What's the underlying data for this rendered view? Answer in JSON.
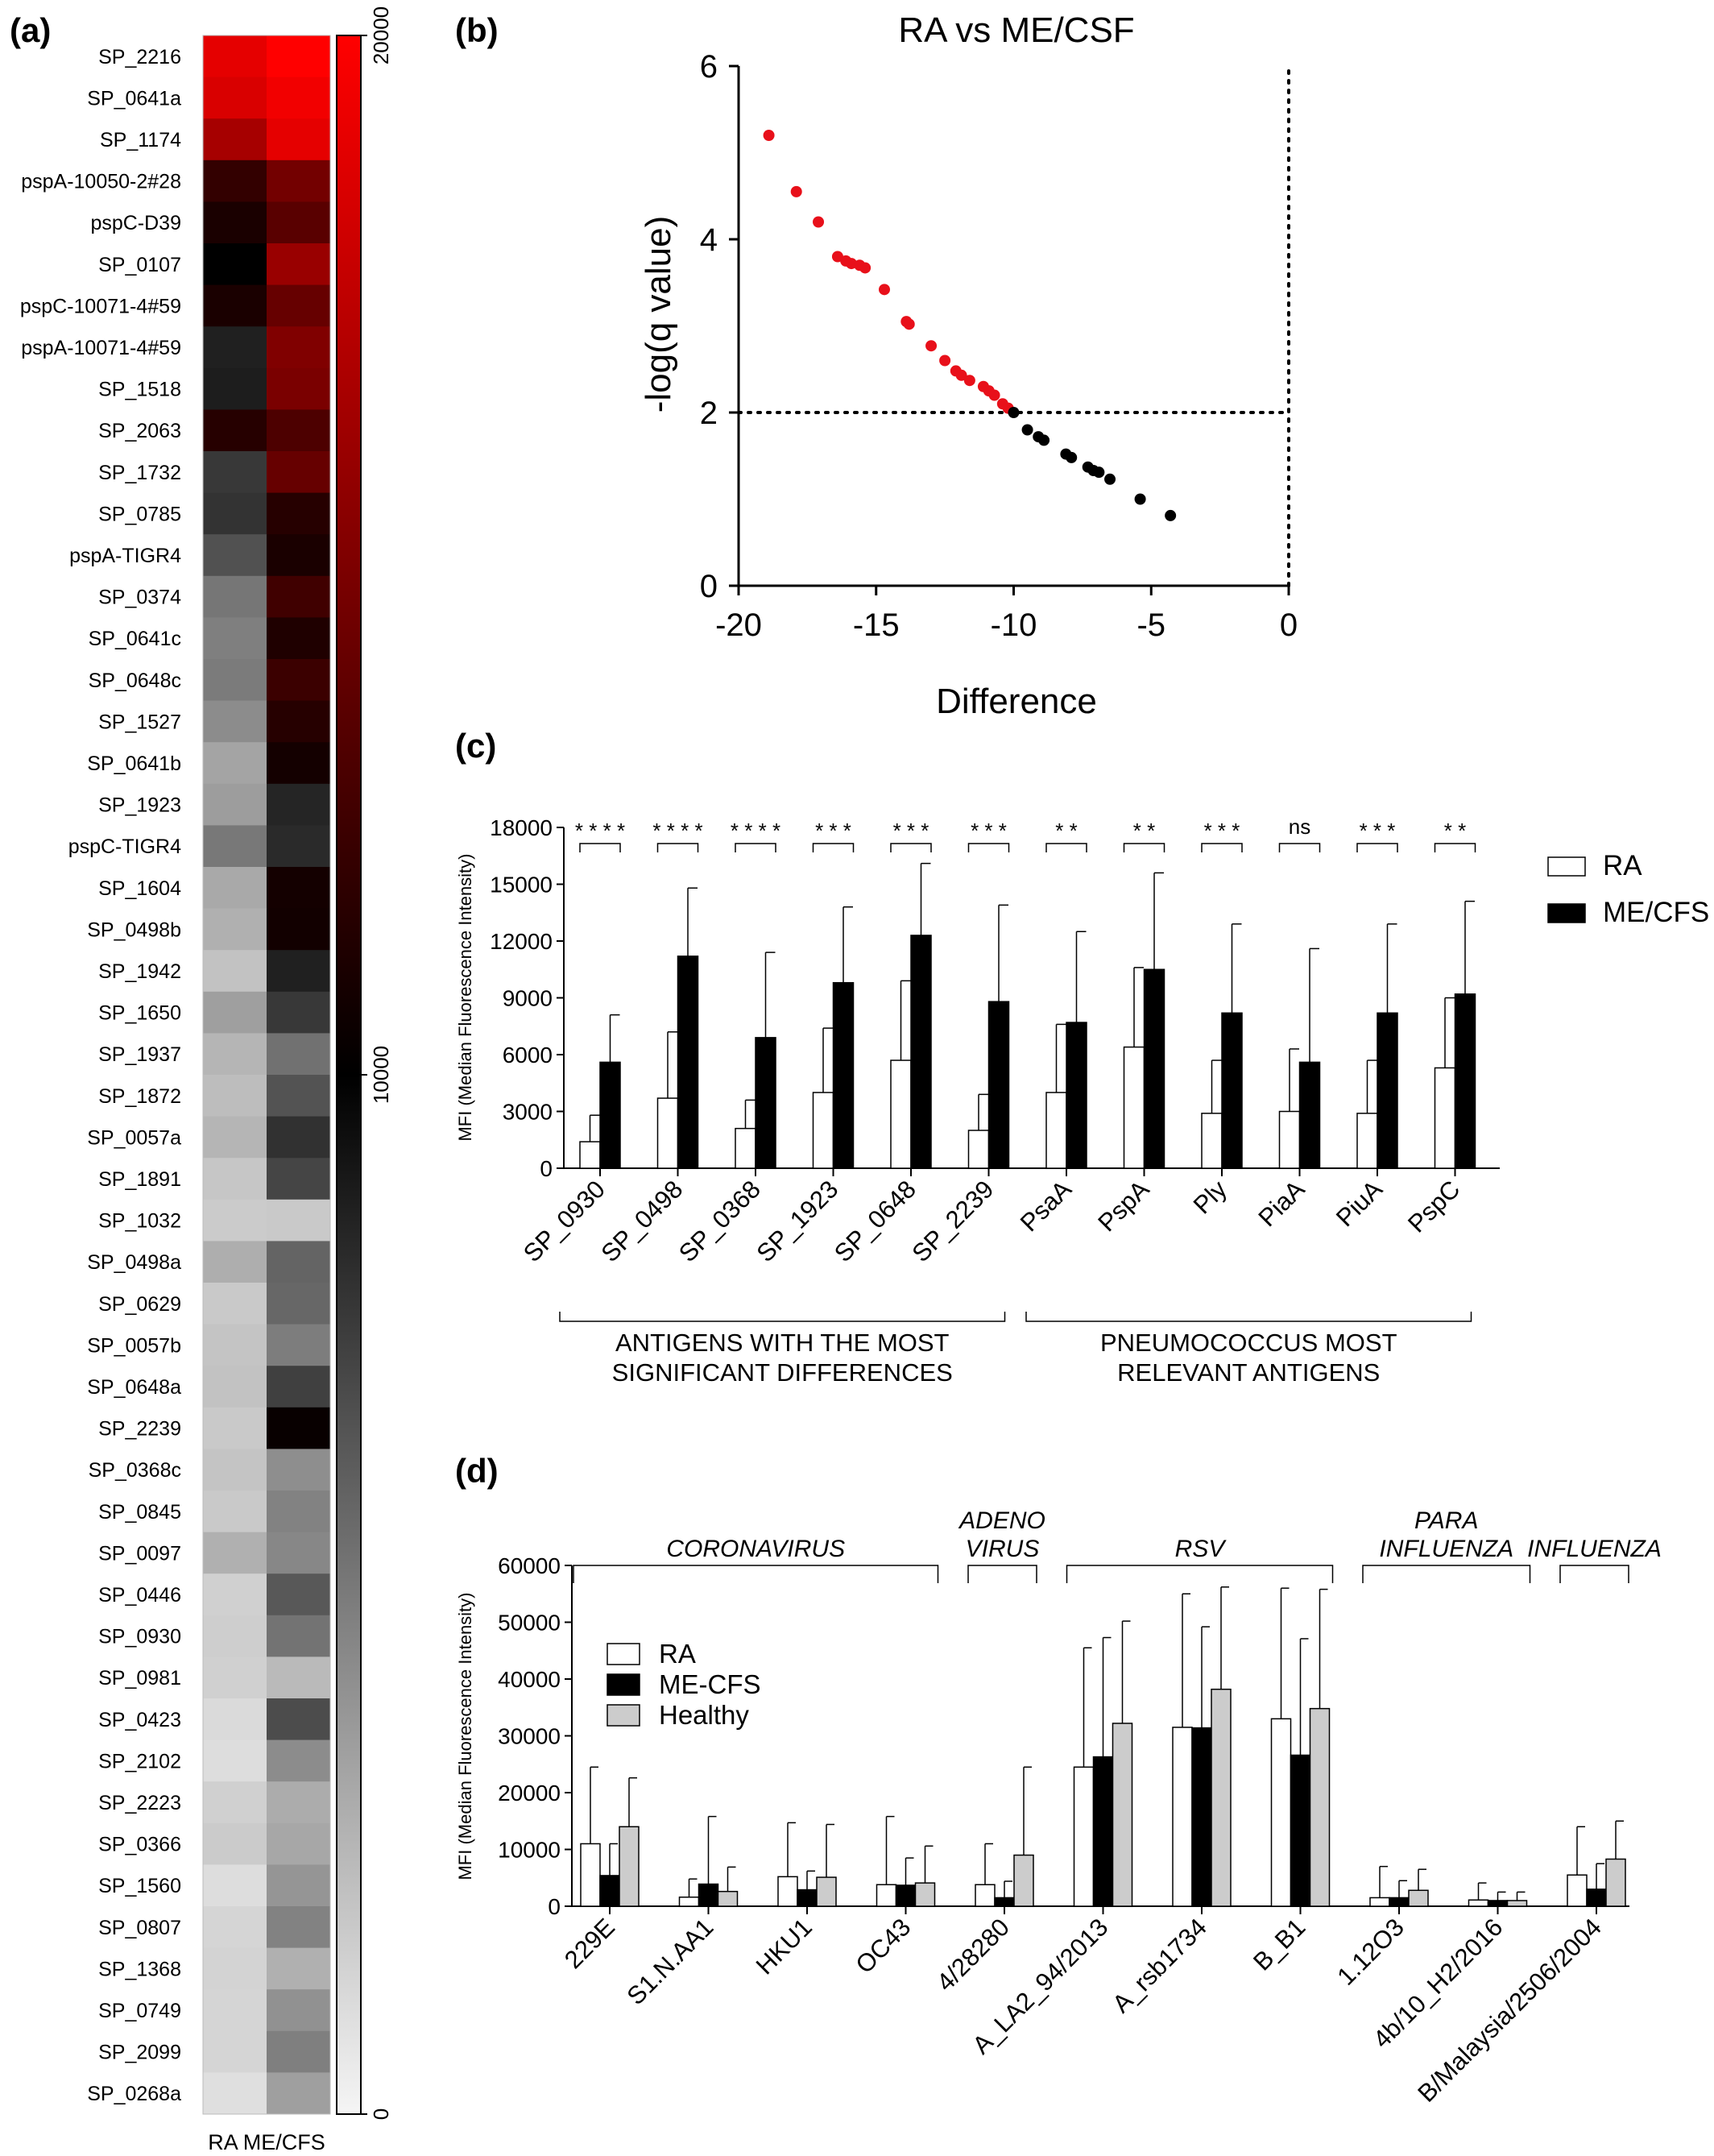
{
  "panel_labels": {
    "a": "(a)",
    "b": "(b)",
    "c": "(c)",
    "d": "(d)"
  },
  "chart_data": [
    {
      "panel": "a",
      "type": "heatmap",
      "rows": [
        "SP_2216",
        "SP_0641a",
        "SP_1174",
        "pspA-10050-2#28",
        "pspC-D39",
        "SP_0107",
        "pspC-10071-4#59",
        "pspA-10071-4#59",
        "SP_1518",
        "SP_2063",
        "SP_1732",
        "SP_0785",
        "pspA-TIGR4",
        "SP_0374",
        "SP_0641c",
        "SP_0648c",
        "SP_1527",
        "SP_0641b",
        "SP_1923",
        "pspC-TIGR4",
        "SP_1604",
        "SP_0498b",
        "SP_1942",
        "SP_1650",
        "SP_1937",
        "SP_1872",
        "SP_0057a",
        "SP_1891",
        "SP_1032",
        "SP_0498a",
        "SP_0629",
        "SP_0057b",
        "SP_0648a",
        "SP_2239",
        "SP_0368c",
        "SP_0845",
        "SP_0097",
        "SP_0446",
        "SP_0930",
        "SP_0981",
        "SP_0423",
        "SP_2102",
        "SP_2223",
        "SP_0366",
        "SP_1560",
        "SP_0807",
        "SP_1368",
        "SP_0749",
        "SP_2099",
        "SP_0268a"
      ],
      "columns": [
        "RA",
        "ME/CFS"
      ],
      "column_label": "RA ME/CFS",
      "values": [
        [
          19000,
          20000
        ],
        [
          18500,
          19500
        ],
        [
          16500,
          19000
        ],
        [
          12000,
          14500
        ],
        [
          11000,
          13500
        ],
        [
          10000,
          16000
        ],
        [
          11000,
          14000
        ],
        [
          8700,
          15000
        ],
        [
          8800,
          14800
        ],
        [
          11500,
          13000
        ],
        [
          7700,
          14000
        ],
        [
          7900,
          11500
        ],
        [
          6700,
          11000
        ],
        [
          5200,
          12500
        ],
        [
          4800,
          11200
        ],
        [
          5000,
          12300
        ],
        [
          4300,
          11500
        ],
        [
          3300,
          10800
        ],
        [
          3600,
          8500
        ],
        [
          5100,
          8300
        ],
        [
          3100,
          10800
        ],
        [
          2800,
          10700
        ],
        [
          2100,
          8700
        ],
        [
          3500,
          7700
        ],
        [
          2600,
          5400
        ],
        [
          2300,
          6600
        ],
        [
          2600,
          8000
        ],
        [
          1900,
          7200
        ],
        [
          1700,
          1800
        ],
        [
          2900,
          5900
        ],
        [
          1800,
          5800
        ],
        [
          2000,
          4900
        ],
        [
          2100,
          7400
        ],
        [
          1800,
          10300
        ],
        [
          2000,
          4200
        ],
        [
          1800,
          4700
        ],
        [
          2800,
          4500
        ],
        [
          1500,
          6400
        ],
        [
          1600,
          5300
        ],
        [
          1500,
          2400
        ],
        [
          1100,
          6900
        ],
        [
          1000,
          4300
        ],
        [
          1500,
          3000
        ],
        [
          1700,
          3200
        ],
        [
          1000,
          3900
        ],
        [
          1300,
          4700
        ],
        [
          1400,
          2800
        ],
        [
          1300,
          4100
        ],
        [
          1300,
          4800
        ],
        [
          900,
          3500
        ]
      ],
      "colorbar": {
        "min": 0,
        "max": 20000,
        "ticks": [
          "20000",
          "10000",
          "0"
        ],
        "colors": [
          "#f5f5f5",
          "#000000",
          "#ff0000"
        ]
      }
    },
    {
      "panel": "b",
      "type": "scatter",
      "title": "RA vs ME/CSF",
      "xlabel": "Difference",
      "ylabel": "-log(q value)",
      "xlim": [
        -20,
        0
      ],
      "ylim": [
        0,
        6
      ],
      "xticks": [
        "-20",
        "-15",
        "-10",
        "-5",
        "0"
      ],
      "yticks": [
        "0",
        "2",
        "4",
        "6"
      ],
      "threshold_y": 2,
      "threshold_x": 0,
      "series": [
        {
          "color": "#e8101a",
          "points": [
            [
              -18.9,
              5.2
            ],
            [
              -17.9,
              4.55
            ],
            [
              -17.1,
              4.2
            ],
            [
              -16.4,
              3.8
            ],
            [
              -16.1,
              3.75
            ],
            [
              -15.9,
              3.72
            ],
            [
              -15.6,
              3.7
            ],
            [
              -15.4,
              3.67
            ],
            [
              -14.7,
              3.42
            ],
            [
              -13.9,
              3.05
            ],
            [
              -13.8,
              3.02
            ],
            [
              -13.0,
              2.77
            ],
            [
              -12.5,
              2.6
            ],
            [
              -12.1,
              2.48
            ],
            [
              -11.9,
              2.43
            ],
            [
              -11.6,
              2.37
            ],
            [
              -11.1,
              2.3
            ],
            [
              -10.9,
              2.25
            ],
            [
              -10.7,
              2.2
            ],
            [
              -10.4,
              2.1
            ],
            [
              -10.2,
              2.05
            ]
          ]
        },
        {
          "color": "#000000",
          "points": [
            [
              -10.0,
              2.0
            ],
            [
              -9.5,
              1.8
            ],
            [
              -9.1,
              1.72
            ],
            [
              -8.9,
              1.68
            ],
            [
              -8.1,
              1.52
            ],
            [
              -7.9,
              1.48
            ],
            [
              -7.3,
              1.37
            ],
            [
              -7.1,
              1.33
            ],
            [
              -6.9,
              1.31
            ],
            [
              -6.5,
              1.23
            ],
            [
              -5.4,
              1.0
            ],
            [
              -4.3,
              0.81
            ]
          ]
        }
      ]
    },
    {
      "panel": "c",
      "type": "bar",
      "ylabel": "MFI (Median Fluorescence Intensity)",
      "ylim": [
        0,
        18000
      ],
      "yticks": [
        "0",
        "3000",
        "6000",
        "9000",
        "12000",
        "15000",
        "18000"
      ],
      "categories": [
        "SP_0930",
        "SP_0498",
        "SP_0368",
        "SP_1923",
        "SP_0648",
        "SP_2239",
        "PsaA",
        "PspA",
        "Ply",
        "PiaA",
        "PiuA",
        "PspC"
      ],
      "series": [
        {
          "name": "RA",
          "color": "#ffffff",
          "values": [
            1400,
            3700,
            2100,
            4000,
            5700,
            2000,
            4000,
            6400,
            2900,
            3000,
            2900,
            5300
          ],
          "errors": [
            1400,
            3500,
            1500,
            3400,
            4200,
            1900,
            3600,
            4200,
            2800,
            3300,
            2800,
            3700
          ]
        },
        {
          "name": "ME/CFS",
          "color": "#000000",
          "values": [
            5600,
            11200,
            6900,
            9800,
            12300,
            8800,
            7700,
            10500,
            8200,
            5600,
            8200,
            9200
          ],
          "errors": [
            2500,
            3600,
            4500,
            4000,
            3800,
            5100,
            4800,
            5100,
            4700,
            6000,
            4700,
            4900
          ]
        }
      ],
      "significance": [
        "****",
        "****",
        "****",
        "***",
        "***",
        "***",
        "**",
        "**",
        "***",
        "ns",
        "***",
        "**"
      ],
      "groups": [
        {
          "label_lines": [
            "ANTIGENS WITH THE MOST",
            "SIGNIFICANT DIFFERENCES"
          ]
        },
        {
          "label_lines": [
            "PNEUMOCOCCUS MOST",
            "RELEVANT ANTIGENS"
          ]
        }
      ]
    },
    {
      "panel": "d",
      "type": "bar",
      "ylabel": "MFI (Median Fluorescence Intensity)",
      "ylim": [
        0,
        60000
      ],
      "yticks": [
        "0",
        "10000",
        "20000",
        "30000",
        "40000",
        "50000",
        "60000"
      ],
      "categories": [
        "229E",
        "S1.N.AA1",
        "HKU1",
        "OC43",
        "4/28280",
        "A_LA2_94/2013",
        "A_rsb1734",
        "B_B1",
        "1.12O3",
        "4b/10_H2/2016",
        "B/Malaysia/2506/2004"
      ],
      "series": [
        {
          "name": "RA",
          "color": "#ffffff",
          "values": [
            11000,
            1600,
            5200,
            3800,
            3800,
            24500,
            31500,
            33000,
            1500,
            1100,
            5500
          ],
          "errors": [
            13500,
            3200,
            9500,
            12000,
            7200,
            21000,
            23500,
            23000,
            5500,
            3000,
            8500
          ]
        },
        {
          "name": "ME-CFS",
          "color": "#000000",
          "values": [
            5400,
            3900,
            2900,
            3700,
            1500,
            26300,
            31400,
            26600,
            1500,
            1000,
            3000
          ],
          "errors": [
            5600,
            11900,
            3300,
            4800,
            2900,
            21000,
            17800,
            20500,
            3000,
            1500,
            4500
          ]
        },
        {
          "name": "Healthy",
          "color": "#cccccc",
          "values": [
            14000,
            2600,
            5100,
            4100,
            9000,
            32200,
            38200,
            34800,
            2800,
            1000,
            8300
          ],
          "errors": [
            8600,
            4300,
            9300,
            6500,
            15500,
            18000,
            18000,
            21000,
            3700,
            1500,
            6700
          ]
        }
      ],
      "groups": [
        {
          "label_lines": [
            "CORONAVIRUS"
          ]
        },
        {
          "label_lines": [
            "ADENO",
            "VIRUS"
          ]
        },
        {
          "label_lines": [
            "RSV"
          ]
        },
        {
          "label_lines": [
            "PARA",
            "INFLUENZA"
          ]
        },
        {
          "label_lines": [
            "INFLUENZA"
          ]
        }
      ]
    }
  ]
}
